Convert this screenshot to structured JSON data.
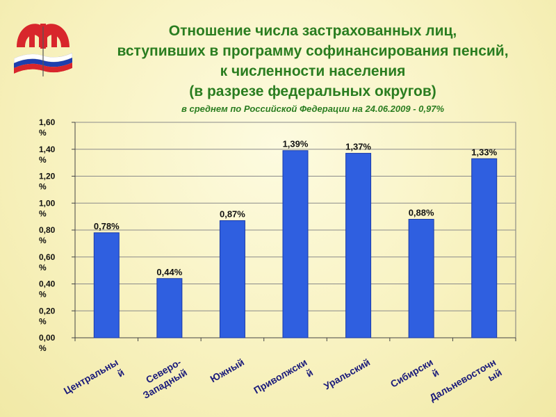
{
  "title_lines": [
    "Отношение числа застрахованных лиц,",
    "вступивших в программу софинансирования пенсий,",
    "к численности населения",
    "(в разрезе федеральных округов)"
  ],
  "subtitle": "в среднем по Российской Федерации  на 24.06.2009 - 0,97%",
  "colors": {
    "bar": "#2f5fe0",
    "bar_edge": "#1a3aa8",
    "title": "#2a7d20",
    "logo_red": "#d8262c",
    "logo_blue": "#1e3fae"
  },
  "chart_data": {
    "type": "bar",
    "categories": [
      "Центральны й",
      "Северо- Западный",
      "Южный",
      "Приволжски й",
      "Уральский",
      "Сибирски й",
      "Дальневосточн ый"
    ],
    "values": [
      0.78,
      0.44,
      0.87,
      1.39,
      1.37,
      0.88,
      1.33
    ],
    "value_labels": [
      "0,78%",
      "0,44%",
      "0,87%",
      "1,39%",
      "1,37%",
      "0,88%",
      "1,33%"
    ],
    "title": "Отношение числа застрахованных лиц, вступивших в программу софинансирования пенсий, к численности населения (в разрезе федеральных округов)",
    "ylim": [
      0,
      1.6
    ],
    "yticks": [
      0,
      0.2,
      0.4,
      0.6,
      0.8,
      1.0,
      1.2,
      1.4,
      1.6
    ],
    "ytick_labels": [
      [
        "0,00",
        "%"
      ],
      [
        "0,20",
        "%"
      ],
      [
        "0,40",
        "%"
      ],
      [
        "0,60",
        "%"
      ],
      [
        "0,80",
        "%"
      ],
      [
        "1,00",
        "%"
      ],
      [
        "1,20",
        "%"
      ],
      [
        "1,40",
        "%"
      ],
      [
        "1,60",
        "%"
      ]
    ],
    "xlabel_lines": [
      [
        "Центральны",
        "й"
      ],
      [
        "Северо-",
        "Западный"
      ],
      [
        "Южный"
      ],
      [
        "Приволжски",
        "й"
      ],
      [
        "Уральский"
      ],
      [
        "Сибирски",
        "й"
      ],
      [
        "Дальневосточн",
        "ый"
      ]
    ],
    "grid": true,
    "legend": "none"
  }
}
